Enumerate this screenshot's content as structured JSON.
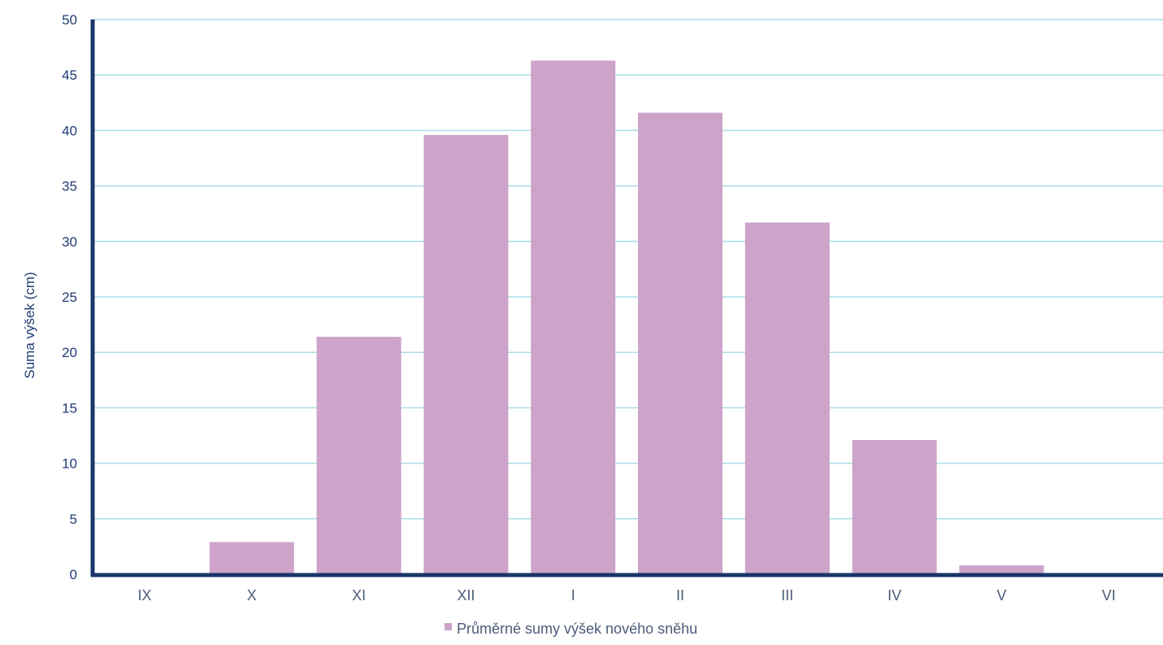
{
  "chart_data": {
    "type": "bar",
    "categories": [
      "IX",
      "X",
      "XI",
      "XII",
      "I",
      "II",
      "III",
      "IV",
      "V",
      "VI"
    ],
    "series": [
      {
        "name": "Průměrné sumy výšek nového sněhu",
        "values": [
          0,
          2.9,
          21.4,
          39.6,
          46.3,
          41.6,
          31.7,
          12.1,
          0.8,
          0
        ]
      }
    ],
    "ylabel": "Suma výšek (cm)",
    "xlabel": "",
    "ylim": [
      0,
      50
    ],
    "yticks": [
      0,
      5,
      10,
      15,
      20,
      25,
      30,
      35,
      40,
      45,
      50
    ],
    "grid": true,
    "legend_position": "bottom",
    "colors": {
      "bar": "#cda3c9",
      "grid": "#a9dde4",
      "axis": "#1a3569"
    }
  }
}
